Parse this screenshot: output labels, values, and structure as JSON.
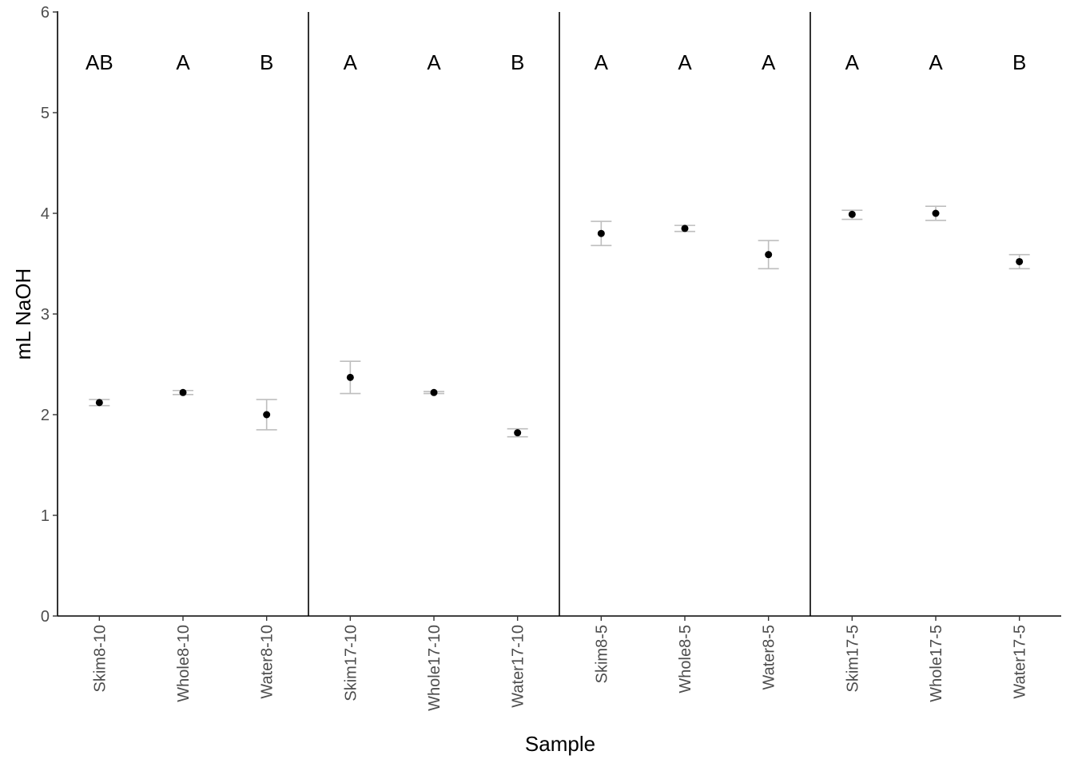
{
  "chart_data": {
    "type": "scatter",
    "title": "",
    "xlabel": "Sample",
    "ylabel": "mL NaOH",
    "ylim": [
      0,
      6
    ],
    "yticks": [
      "0",
      "1",
      "2",
      "3",
      "4",
      "5",
      "6"
    ],
    "grid": false,
    "categories": [
      "Skim8-10",
      "Whole8-10",
      "Water8-10",
      "Skim17-10",
      "Whole17-10",
      "Water17-10",
      "Skim8-5",
      "Whole8-5",
      "Water8-5",
      "Skim17-5",
      "Whole17-5",
      "Water17-5"
    ],
    "values": [
      2.12,
      2.22,
      2.0,
      2.37,
      2.22,
      1.82,
      3.8,
      3.85,
      3.59,
      3.99,
      4.0,
      3.52
    ],
    "error_low": [
      2.09,
      2.2,
      1.85,
      2.21,
      2.21,
      1.78,
      3.68,
      3.82,
      3.45,
      3.94,
      3.93,
      3.45
    ],
    "error_high": [
      2.15,
      2.24,
      2.15,
      2.53,
      2.23,
      1.86,
      3.92,
      3.88,
      3.73,
      4.03,
      4.07,
      3.59
    ],
    "letters": [
      "AB",
      "A",
      "B",
      "A",
      "A",
      "B",
      "A",
      "A",
      "A",
      "A",
      "A",
      "B"
    ],
    "letter_y": 5.5,
    "group_dividers_after": [
      3,
      6,
      9
    ],
    "colors": {
      "point": "#000000",
      "errorbar": "#bebebe",
      "axis": "#000000",
      "divider": "#000000"
    }
  }
}
